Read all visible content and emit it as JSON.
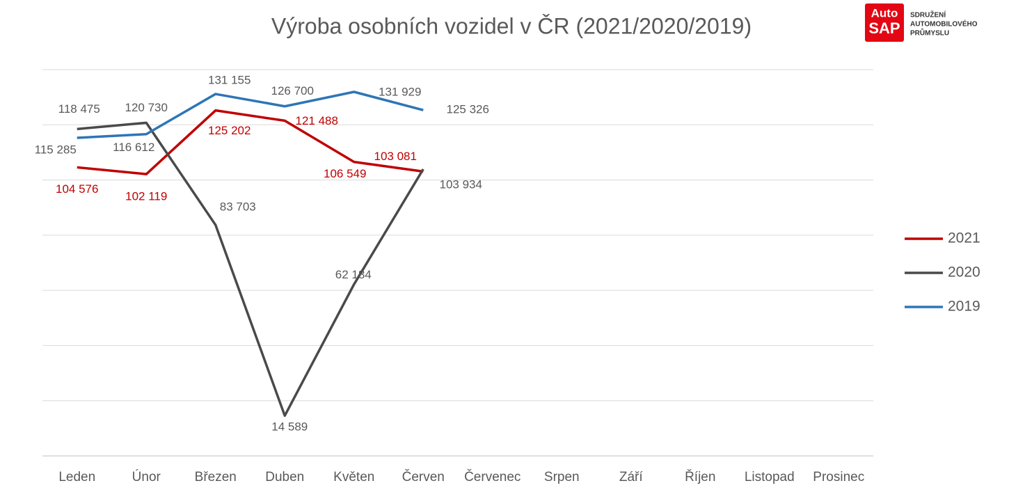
{
  "logo": {
    "mark": [
      "Auto",
      "SAP"
    ],
    "text": [
      "SDRUŽENÍ",
      "AUTOMOBILOVÉHO",
      "PRŮMYSLU"
    ]
  },
  "chart_data": {
    "type": "line",
    "title": "Výroba osobních vozidel v ČR (2021/2020/2019)",
    "categories": [
      "Leden",
      "Únor",
      "Březen",
      "Duben",
      "Květen",
      "Červen",
      "Červenec",
      "Srpen",
      "Září",
      "Říjen",
      "Listopad",
      "Prosinec"
    ],
    "series": [
      {
        "name": "2021",
        "color": "#c00000",
        "values": [
          104576,
          102119,
          125202,
          121488,
          106549,
          103081,
          null,
          null,
          null,
          null,
          null,
          null
        ],
        "value_labels": [
          "104 576",
          "102 119",
          "125 202",
          "121 488",
          "106 549",
          "103 081",
          null,
          null,
          null,
          null,
          null,
          null
        ]
      },
      {
        "name": "2020",
        "color": "#4a4a4a",
        "values": [
          118475,
          120730,
          83703,
          14589,
          62184,
          103934,
          null,
          null,
          null,
          null,
          null,
          null
        ],
        "value_labels": [
          "118 475",
          "120 730",
          "83 703",
          "14 589",
          "62 184",
          "103 934",
          null,
          null,
          null,
          null,
          null,
          null
        ]
      },
      {
        "name": "2019",
        "color": "#2e75b6",
        "values": [
          115285,
          116612,
          131155,
          126700,
          131929,
          125326,
          null,
          null,
          null,
          null,
          null,
          null
        ],
        "value_labels": [
          "115 285",
          "116 612",
          "131 155",
          "126 700",
          "131 929",
          "125 326",
          null,
          null,
          null,
          null,
          null,
          null
        ]
      }
    ],
    "ylim": [
      0,
      140000
    ],
    "yticks": [
      0,
      20000,
      40000,
      60000,
      80000,
      100000,
      120000,
      140000
    ],
    "grid": true,
    "legend": "right"
  }
}
